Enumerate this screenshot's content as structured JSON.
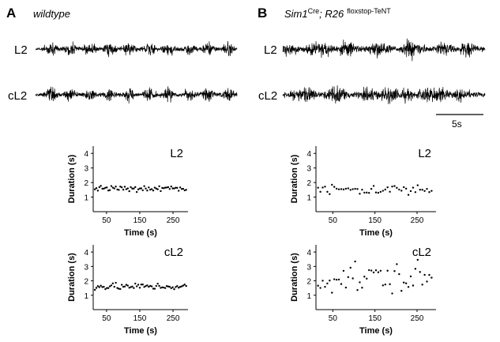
{
  "panels": [
    {
      "letter": "A",
      "title": "wildtype",
      "title_sup": "",
      "title_tail": "",
      "trace_labels": [
        "L2",
        "cL2"
      ],
      "traces": {
        "bursting": "rhythmic",
        "burst_centers_s": [
          1.7,
          3.9,
          6.1,
          8.3,
          10.5,
          12.7,
          14.9,
          17.1,
          19.3,
          21.5
        ],
        "burst_duration_s": 1.5
      }
    },
    {
      "letter": "B",
      "title": "Sim1",
      "title_sup": "Cre",
      "title_tail": "; R26",
      "title_sup2": "floxstop-TeNT",
      "trace_labels": [
        "L2",
        "cL2"
      ],
      "traces": {
        "bursting": "irregular",
        "burst_centers_s": [
          0.9,
          3.1,
          5.4,
          7.2,
          9.6,
          11.3,
          13.8,
          15.6,
          17.9,
          20.0
        ],
        "burst_duration_s": 1.8
      },
      "scale_bar": "5s"
    }
  ],
  "chart_data": [
    {
      "type": "scatter",
      "panel": "A",
      "series_label": "L2",
      "title": "",
      "xlabel": "Time (s)",
      "ylabel": "Duration (s)",
      "xlim": [
        10,
        295
      ],
      "ylim": [
        0,
        4.5
      ],
      "xticks": [
        50,
        150,
        250
      ],
      "yticks": [
        1,
        2,
        3,
        4
      ],
      "points": {
        "x_start": 15,
        "x_step": 4.5,
        "count": 62,
        "mean": 1.6,
        "spread": 0.18
      }
    },
    {
      "type": "scatter",
      "panel": "A",
      "series_label": "cL2",
      "title": "",
      "xlabel": "Time (s)",
      "ylabel": "Duration (s)",
      "xlim": [
        10,
        295
      ],
      "ylim": [
        0,
        4.5
      ],
      "xticks": [
        50,
        150,
        250
      ],
      "yticks": [
        1,
        2,
        3,
        4
      ],
      "points": {
        "x_start": 15,
        "x_step": 4.5,
        "count": 62,
        "mean": 1.6,
        "spread": 0.16
      }
    },
    {
      "type": "scatter",
      "panel": "B",
      "series_label": "L2",
      "title": "",
      "xlabel": "Time (s)",
      "ylabel": "Duration (s)",
      "xlim": [
        10,
        295
      ],
      "ylim": [
        0,
        4.5
      ],
      "xticks": [
        50,
        150,
        250
      ],
      "yticks": [
        1,
        2,
        3,
        4
      ],
      "points": {
        "x_start": 15,
        "x_step": 5.5,
        "count": 50,
        "mean": 1.5,
        "spread": 0.28
      }
    },
    {
      "type": "scatter",
      "panel": "B",
      "series_label": "cL2",
      "title": "",
      "xlabel": "Time (s)",
      "ylabel": "Duration (s)",
      "xlim": [
        10,
        295
      ],
      "ylim": [
        0,
        4.5
      ],
      "xticks": [
        50,
        150,
        250
      ],
      "yticks": [
        1,
        2,
        3,
        4
      ],
      "points": {
        "x_start": 15,
        "x_step": 5.5,
        "count": 50,
        "mean": 2.2,
        "spread": 0.85
      }
    }
  ]
}
